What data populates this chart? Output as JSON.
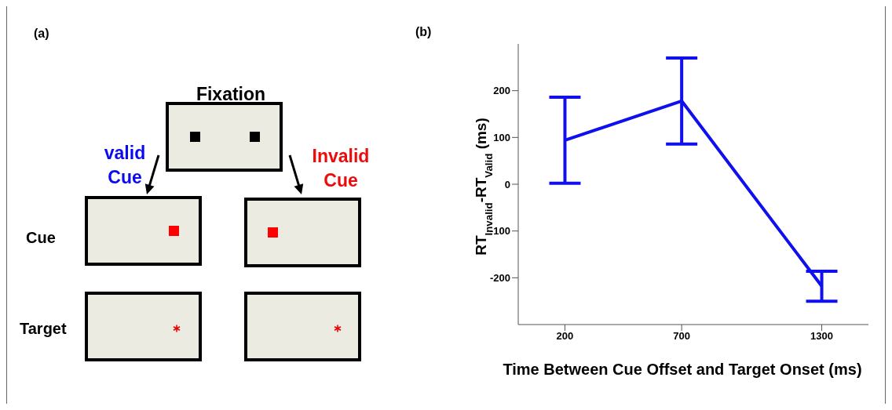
{
  "chart_data": [
    {
      "type": "other",
      "title": "(a)",
      "annotations": [
        "Fixation",
        "valid\nCue",
        "Invalid\nCue",
        "Cue",
        "Target"
      ]
    },
    {
      "type": "line",
      "title": "(b)",
      "xlabel": "Time Between Cue Offset and Target Onset (ms)",
      "ylabel": "RT$_{Invalid}$-RT$_{Valid}$ (ms)",
      "x": [
        200,
        700,
        1300
      ],
      "series": [
        {
          "color": "#1010ee",
          "values": [
            94,
            178,
            -218
          ],
          "errors": [
            92,
            92,
            32
          ]
        }
      ],
      "xlim": [
        0,
        1500
      ],
      "xticks": [
        200,
        700,
        1300
      ],
      "ylim": [
        -300,
        300
      ],
      "yticks": [
        -200,
        -100,
        0,
        100,
        200
      ],
      "grid": false,
      "legend": false,
      "marker": "none",
      "line_style": "solid"
    }
  ]
}
